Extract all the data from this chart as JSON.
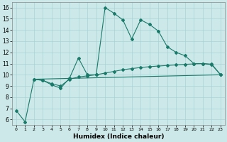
{
  "xlabel": "Humidex (Indice chaleur)",
  "background_color": "#cce8e8",
  "line_color": "#1a7a6a",
  "xlim": [
    -0.5,
    23.5
  ],
  "ylim": [
    5.5,
    16.5
  ],
  "xticks": [
    0,
    1,
    2,
    3,
    4,
    5,
    6,
    7,
    8,
    9,
    10,
    11,
    12,
    13,
    14,
    15,
    16,
    17,
    18,
    19,
    20,
    21,
    22,
    23
  ],
  "yticks": [
    6,
    7,
    8,
    9,
    10,
    11,
    12,
    13,
    14,
    15,
    16
  ],
  "series1_x": [
    0,
    1,
    2,
    3,
    4,
    5,
    6,
    7,
    8,
    9,
    10,
    11,
    12,
    13,
    14,
    15,
    16,
    17,
    18,
    19,
    20,
    21,
    22,
    23
  ],
  "series1_y": [
    6.8,
    5.8,
    9.6,
    9.5,
    9.1,
    8.8,
    9.7,
    11.5,
    10.0,
    10.0,
    16.0,
    15.5,
    14.9,
    13.2,
    14.9,
    14.5,
    13.9,
    12.5,
    12.0,
    11.7,
    11.0,
    11.0,
    10.9,
    10.0
  ],
  "series2_x": [
    2,
    3,
    4,
    5,
    6,
    7,
    8,
    9,
    10,
    11,
    12,
    13,
    14,
    15,
    16,
    17,
    18,
    19,
    20,
    21,
    22,
    23
  ],
  "series2_y": [
    9.6,
    9.5,
    9.2,
    9.0,
    9.6,
    9.8,
    9.9,
    10.0,
    10.15,
    10.3,
    10.45,
    10.55,
    10.65,
    10.72,
    10.78,
    10.83,
    10.88,
    10.93,
    10.97,
    11.0,
    10.95,
    10.0
  ],
  "series3_x": [
    2,
    23
  ],
  "series3_y": [
    9.6,
    10.0
  ],
  "grid_color": "#a8d4d4",
  "markersize": 2.0,
  "linewidth": 0.8
}
